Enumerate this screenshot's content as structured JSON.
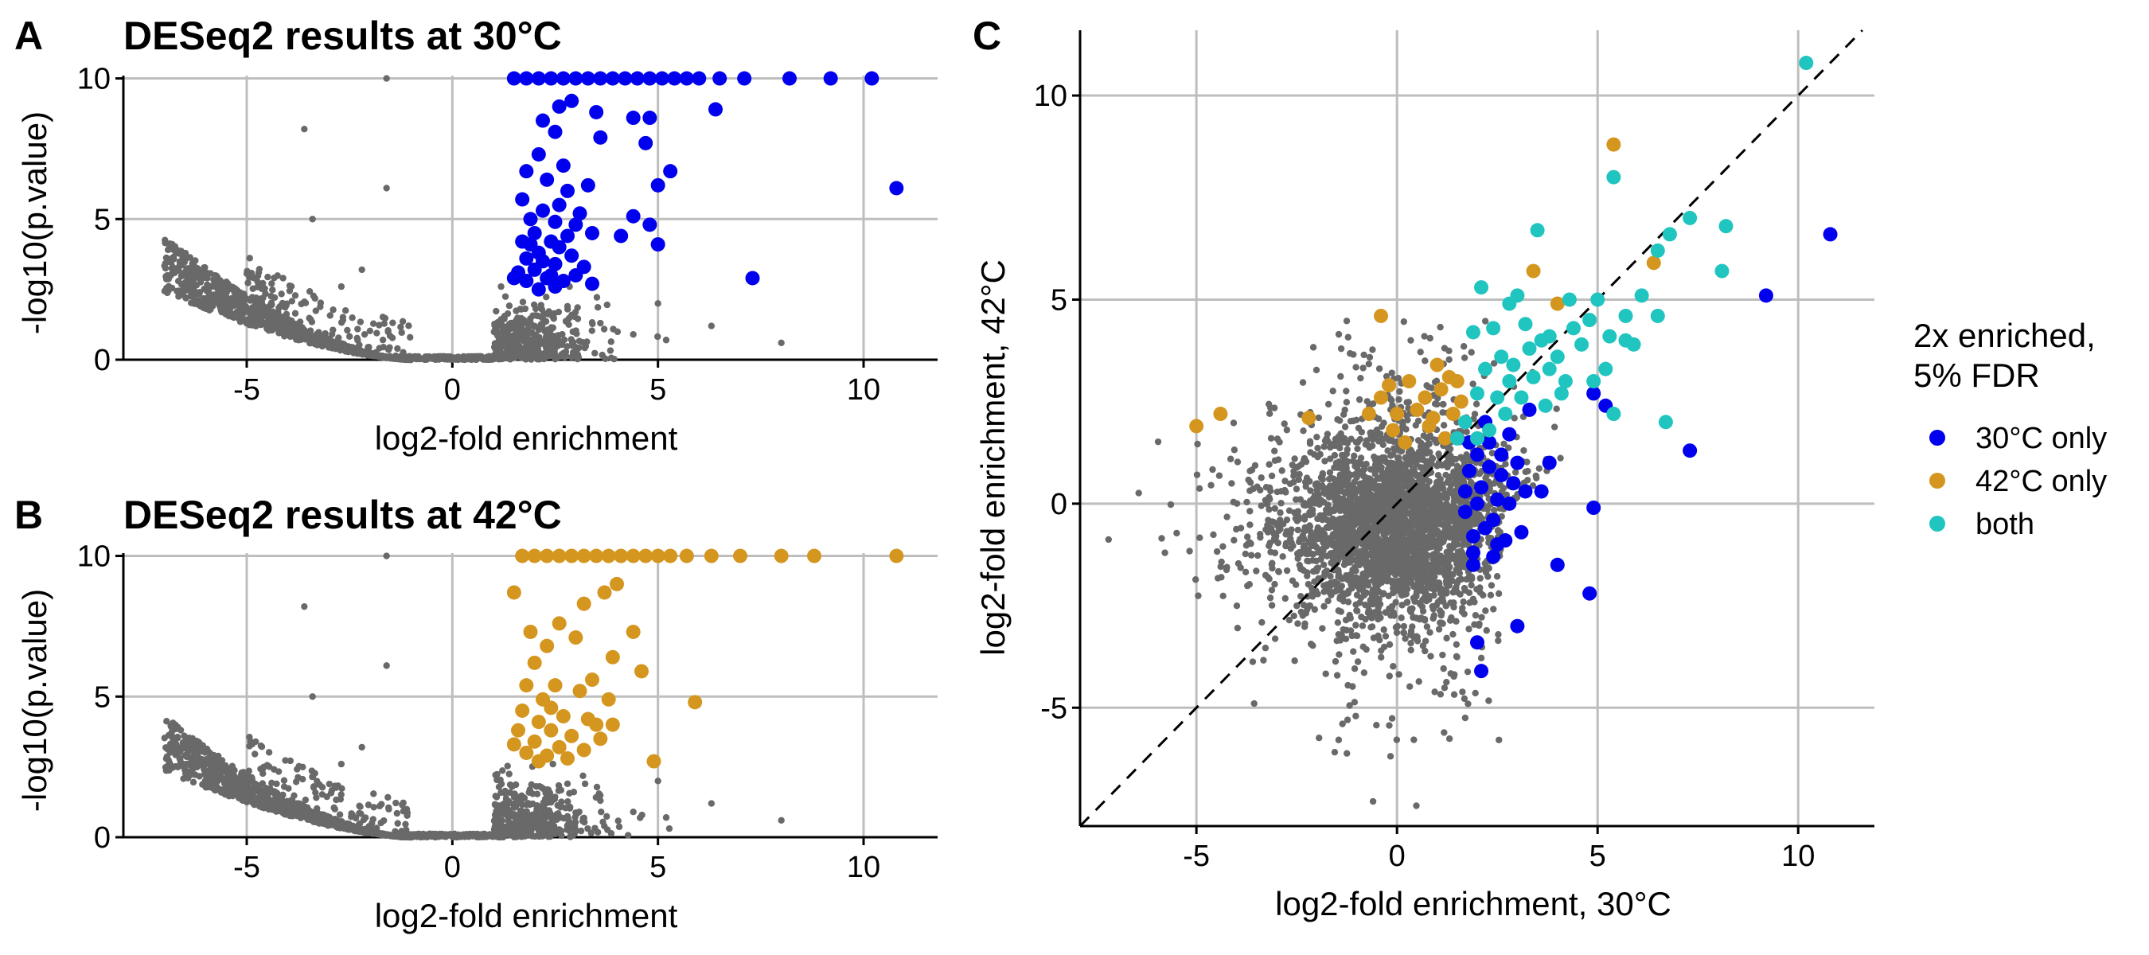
{
  "colors": {
    "background": "#ffffff",
    "grid": "#bebebe",
    "nonsignificant": "#696969",
    "only30": "#0000ee",
    "only42": "#d4961f",
    "both": "#20c5c0"
  },
  "figure": {
    "panels": [
      {
        "letter": "A",
        "title": "DESeq2 results at 30°C",
        "xlabel": "log2-fold enrichment",
        "ylabel": "-log10(p.value)"
      },
      {
        "letter": "B",
        "title": "DESeq2 results at 42°C",
        "xlabel": "log2-fold enrichment",
        "ylabel": "-log10(p.value)"
      },
      {
        "letter": "C",
        "title": "",
        "xlabel": "log2-fold enrichment, 30°C",
        "ylabel": "log2-fold enrichment, 42°C"
      }
    ],
    "legend": {
      "title_lines": [
        "2x enriched,",
        "5% FDR"
      ],
      "items": [
        {
          "label": "30°C only",
          "color_key": "only30"
        },
        {
          "label": "42°C only",
          "color_key": "only42"
        },
        {
          "label": "both",
          "color_key": "both"
        }
      ]
    }
  },
  "chart_data": [
    {
      "type": "scatter",
      "panel": "A",
      "title": "DESeq2 results at 30°C",
      "xlabel": "log2-fold enrichment",
      "ylabel": "-log10(p.value)",
      "xlim": [
        -8,
        11.8
      ],
      "ylim": [
        0,
        10.1
      ],
      "xticks": [
        -5,
        0,
        5,
        10
      ],
      "yticks": [
        0,
        5,
        10
      ],
      "grid": true,
      "notes_background": "dense grey cloud of non-significant genes forming a V shape: left arm from x=-7 (y~4.4) curving down to x~-1 (y~0), right arm from x~1 rising; capped values at y=10",
      "background_density": {
        "left_arm_x": [
          -7.0,
          -1.0
        ],
        "left_arm_top_y": 4.4,
        "right_arm_x": [
          1.0,
          6.0
        ],
        "cap_y": 10
      },
      "highlight_series": {
        "name": "30°C only",
        "color_key": "only30",
        "points": [
          [
            1.5,
            10
          ],
          [
            1.8,
            10
          ],
          [
            2.1,
            10
          ],
          [
            2.4,
            10
          ],
          [
            2.7,
            10
          ],
          [
            3.0,
            10
          ],
          [
            3.3,
            10
          ],
          [
            3.6,
            10
          ],
          [
            3.9,
            10
          ],
          [
            4.2,
            10
          ],
          [
            4.5,
            10
          ],
          [
            4.8,
            10
          ],
          [
            5.1,
            10
          ],
          [
            5.4,
            10
          ],
          [
            5.7,
            10
          ],
          [
            6.0,
            10
          ],
          [
            6.5,
            10
          ],
          [
            7.1,
            10
          ],
          [
            8.2,
            10
          ],
          [
            9.2,
            10
          ],
          [
            10.2,
            10
          ],
          [
            2.9,
            9.2
          ],
          [
            2.6,
            9.0
          ],
          [
            3.5,
            8.8
          ],
          [
            4.4,
            8.6
          ],
          [
            4.8,
            8.6
          ],
          [
            2.2,
            8.5
          ],
          [
            6.4,
            8.9
          ],
          [
            2.5,
            8.1
          ],
          [
            3.6,
            7.9
          ],
          [
            4.7,
            7.7
          ],
          [
            2.1,
            7.3
          ],
          [
            5.3,
            6.7
          ],
          [
            2.7,
            6.9
          ],
          [
            1.8,
            6.7
          ],
          [
            2.3,
            6.4
          ],
          [
            3.3,
            6.2
          ],
          [
            2.8,
            6.0
          ],
          [
            5.0,
            6.2
          ],
          [
            10.8,
            6.1
          ],
          [
            1.7,
            5.7
          ],
          [
            2.6,
            5.5
          ],
          [
            2.2,
            5.3
          ],
          [
            4.4,
            5.1
          ],
          [
            1.9,
            5.0
          ],
          [
            2.5,
            4.9
          ],
          [
            3.0,
            4.8
          ],
          [
            4.8,
            4.8
          ],
          [
            2.0,
            4.5
          ],
          [
            2.8,
            4.4
          ],
          [
            3.4,
            4.5
          ],
          [
            4.1,
            4.4
          ],
          [
            1.7,
            4.2
          ],
          [
            2.4,
            4.2
          ],
          [
            5.0,
            4.1
          ],
          [
            2.1,
            3.8
          ],
          [
            2.9,
            3.7
          ],
          [
            1.8,
            3.6
          ],
          [
            2.5,
            3.4
          ],
          [
            3.2,
            3.3
          ],
          [
            2.0,
            3.2
          ],
          [
            1.6,
            3.1
          ],
          [
            2.3,
            2.9
          ],
          [
            2.7,
            2.8
          ],
          [
            3.4,
            2.7
          ],
          [
            1.8,
            2.8
          ],
          [
            7.3,
            2.9
          ],
          [
            2.1,
            2.5
          ],
          [
            2.5,
            2.6
          ],
          [
            3.0,
            3.0
          ],
          [
            1.5,
            2.9
          ],
          [
            2.2,
            3.5
          ],
          [
            2.6,
            4.0
          ],
          [
            3.1,
            5.2
          ],
          [
            1.9,
            4.1
          ],
          [
            2.4,
            3.0
          ]
        ]
      }
    },
    {
      "type": "scatter",
      "panel": "B",
      "title": "DESeq2 results at 42°C",
      "xlabel": "log2-fold enrichment",
      "ylabel": "-log10(p.value)",
      "xlim": [
        -8,
        11.8
      ],
      "ylim": [
        0,
        10.1
      ],
      "xticks": [
        -5,
        0,
        5,
        10
      ],
      "yticks": [
        0,
        5,
        10
      ],
      "grid": true,
      "background_density": {
        "left_arm_x": [
          -7.0,
          -1.0
        ],
        "left_arm_top_y": 4.3,
        "right_arm_x": [
          1.0,
          6.0
        ],
        "cap_y": 10
      },
      "highlight_series": {
        "name": "42°C only",
        "color_key": "only42",
        "points": [
          [
            1.7,
            10
          ],
          [
            2.0,
            10
          ],
          [
            2.3,
            10
          ],
          [
            2.6,
            10
          ],
          [
            2.9,
            10
          ],
          [
            3.2,
            10
          ],
          [
            3.5,
            10
          ],
          [
            3.8,
            10
          ],
          [
            4.1,
            10
          ],
          [
            4.4,
            10
          ],
          [
            4.7,
            10
          ],
          [
            5.0,
            10
          ],
          [
            5.3,
            10
          ],
          [
            5.7,
            10
          ],
          [
            6.3,
            10
          ],
          [
            7.0,
            10
          ],
          [
            8.0,
            10
          ],
          [
            8.8,
            10
          ],
          [
            10.8,
            10
          ],
          [
            1.5,
            8.7
          ],
          [
            3.7,
            8.7
          ],
          [
            4.0,
            9.0
          ],
          [
            3.2,
            8.3
          ],
          [
            2.6,
            7.6
          ],
          [
            1.9,
            7.3
          ],
          [
            4.4,
            7.3
          ],
          [
            3.0,
            7.1
          ],
          [
            2.3,
            6.8
          ],
          [
            3.9,
            6.4
          ],
          [
            2.0,
            6.2
          ],
          [
            4.6,
            5.9
          ],
          [
            3.4,
            5.6
          ],
          [
            1.8,
            5.4
          ],
          [
            2.5,
            5.4
          ],
          [
            3.1,
            5.2
          ],
          [
            3.8,
            4.9
          ],
          [
            2.2,
            4.9
          ],
          [
            5.9,
            4.8
          ],
          [
            1.7,
            4.5
          ],
          [
            2.7,
            4.3
          ],
          [
            3.3,
            4.2
          ],
          [
            2.1,
            4.1
          ],
          [
            3.9,
            4.0
          ],
          [
            2.4,
            3.8
          ],
          [
            1.5,
            3.3
          ],
          [
            2.9,
            3.6
          ],
          [
            3.6,
            3.5
          ],
          [
            2.0,
            3.4
          ],
          [
            2.6,
            3.2
          ],
          [
            3.2,
            3.1
          ],
          [
            1.8,
            3.0
          ],
          [
            2.3,
            2.9
          ],
          [
            4.9,
            2.7
          ],
          [
            2.8,
            2.8
          ],
          [
            2.1,
            2.7
          ],
          [
            1.6,
            3.8
          ],
          [
            2.4,
            4.6
          ],
          [
            3.5,
            4.0
          ]
        ]
      }
    },
    {
      "type": "scatter",
      "panel": "C",
      "xlabel": "log2-fold enrichment, 30°C",
      "ylabel": "log2-fold enrichment, 42°C",
      "xlim": [
        -7.9,
        11.9
      ],
      "ylim": [
        -7.9,
        11.6
      ],
      "xticks": [
        -5,
        0,
        5,
        10
      ],
      "yticks": [
        -5,
        0,
        5,
        10
      ],
      "grid": true,
      "reference_line": "y = x (dashed)",
      "legend_placement": "right",
      "background_cloud": {
        "center": [
          0,
          -0.5
        ],
        "spread_x": 2.2,
        "spread_y": 1.8
      },
      "series": [
        {
          "name": "30°C only",
          "color_key": "only30",
          "points": [
            [
              10.8,
              6.6
            ],
            [
              9.2,
              5.1
            ],
            [
              7.3,
              1.3
            ],
            [
              4.9,
              -0.1
            ],
            [
              4.8,
              -2.2
            ],
            [
              4.0,
              -1.5
            ],
            [
              3.6,
              0.3
            ],
            [
              3.8,
              1.0
            ],
            [
              3.0,
              -3.0
            ],
            [
              2.0,
              -3.4
            ],
            [
              2.1,
              -4.1
            ],
            [
              5.2,
              2.4
            ],
            [
              4.9,
              2.7
            ],
            [
              2.4,
              -0.4
            ],
            [
              2.8,
              0.0
            ],
            [
              1.9,
              -0.8
            ],
            [
              2.2,
              -0.6
            ],
            [
              3.1,
              -0.7
            ],
            [
              2.6,
              0.7
            ],
            [
              1.8,
              0.8
            ],
            [
              2.0,
              1.2
            ],
            [
              2.3,
              1.5
            ],
            [
              2.8,
              1.7
            ],
            [
              1.7,
              0.3
            ],
            [
              2.5,
              0.1
            ],
            [
              2.1,
              0.4
            ],
            [
              1.9,
              -1.2
            ],
            [
              2.7,
              -0.9
            ],
            [
              2.4,
              -1.3
            ],
            [
              1.8,
              1.5
            ],
            [
              2.2,
              2.0
            ],
            [
              2.6,
              1.2
            ],
            [
              3.0,
              1.0
            ],
            [
              2.9,
              0.5
            ],
            [
              2.0,
              0.0
            ],
            [
              1.7,
              -0.2
            ],
            [
              2.3,
              0.9
            ],
            [
              3.3,
              2.3
            ],
            [
              1.9,
              -1.5
            ],
            [
              2.5,
              -1.0
            ],
            [
              3.2,
              0.3
            ]
          ]
        },
        {
          "name": "42°C only",
          "color_key": "only42",
          "points": [
            [
              5.4,
              8.8
            ],
            [
              6.4,
              5.9
            ],
            [
              3.4,
              5.7
            ],
            [
              -0.4,
              4.6
            ],
            [
              -5.0,
              1.9
            ],
            [
              -4.4,
              2.2
            ],
            [
              -2.2,
              2.1
            ],
            [
              -0.7,
              2.2
            ],
            [
              -0.2,
              2.9
            ],
            [
              0.3,
              3.0
            ],
            [
              0.7,
              2.6
            ],
            [
              1.0,
              3.4
            ],
            [
              1.1,
              2.8
            ],
            [
              1.4,
              2.2
            ],
            [
              1.3,
              3.1
            ],
            [
              1.6,
              2.5
            ],
            [
              0.5,
              2.3
            ],
            [
              0.2,
              1.5
            ],
            [
              -0.1,
              1.8
            ],
            [
              0.8,
              1.9
            ],
            [
              1.2,
              1.6
            ],
            [
              -0.4,
              2.6
            ],
            [
              1.5,
              3.0
            ],
            [
              0.9,
              2.1
            ],
            [
              0.0,
              2.2
            ],
            [
              4.0,
              4.9
            ]
          ]
        },
        {
          "name": "both",
          "color_key": "both",
          "points": [
            [
              10.2,
              10.8
            ],
            [
              8.2,
              6.8
            ],
            [
              7.3,
              7.0
            ],
            [
              6.8,
              6.6
            ],
            [
              8.1,
              5.7
            ],
            [
              6.5,
              6.2
            ],
            [
              6.1,
              5.1
            ],
            [
              6.5,
              4.6
            ],
            [
              5.7,
              4.6
            ],
            [
              5.4,
              8.0
            ],
            [
              5.0,
              5.0
            ],
            [
              4.8,
              4.5
            ],
            [
              5.3,
              4.1
            ],
            [
              6.7,
              2.0
            ],
            [
              5.4,
              2.2
            ],
            [
              3.5,
              6.7
            ],
            [
              4.0,
              3.6
            ],
            [
              3.8,
              4.1
            ],
            [
              4.4,
              4.3
            ],
            [
              3.2,
              4.4
            ],
            [
              3.6,
              4.0
            ],
            [
              2.9,
              3.4
            ],
            [
              4.2,
              3.0
            ],
            [
              3.1,
              2.6
            ],
            [
              2.7,
              2.2
            ],
            [
              2.3,
              1.8
            ],
            [
              2.0,
              1.6
            ],
            [
              1.7,
              2.0
            ],
            [
              2.8,
              4.9
            ],
            [
              2.1,
              5.3
            ],
            [
              3.0,
              5.1
            ],
            [
              2.4,
              4.3
            ],
            [
              1.9,
              4.2
            ],
            [
              2.6,
              3.6
            ],
            [
              2.2,
              3.3
            ],
            [
              3.4,
              3.1
            ],
            [
              4.6,
              3.9
            ],
            [
              4.1,
              2.7
            ],
            [
              3.7,
              2.4
            ],
            [
              5.9,
              3.9
            ],
            [
              5.2,
              3.3
            ],
            [
              4.3,
              5.0
            ],
            [
              2.5,
              2.6
            ],
            [
              1.5,
              1.6
            ],
            [
              3.3,
              3.8
            ],
            [
              4.9,
              3.0
            ],
            [
              5.7,
              4.0
            ],
            [
              2.0,
              2.7
            ],
            [
              3.8,
              3.3
            ],
            [
              2.8,
              3.0
            ]
          ]
        }
      ]
    }
  ]
}
